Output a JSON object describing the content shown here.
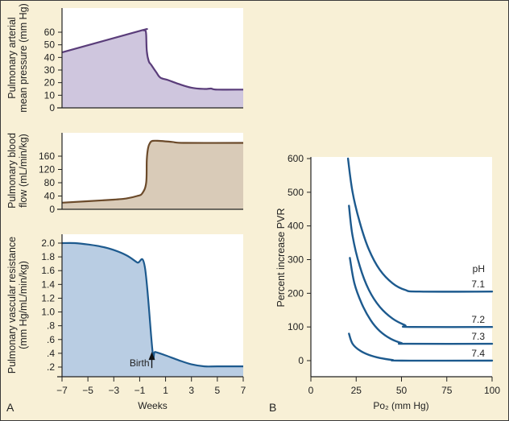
{
  "chart_data": [
    {
      "panel": "A",
      "type": "area",
      "title": "",
      "ylabel": [
        "Pulmonary arterial",
        "mean pressure (mm Hg)"
      ],
      "xlabel": "",
      "xlim": [
        -7,
        7
      ],
      "ylim": [
        0,
        70
      ],
      "yticks": [
        0,
        10,
        20,
        30,
        40,
        50,
        60
      ],
      "ytick_labels": [
        "0",
        "10",
        "20",
        "30",
        "40",
        "50",
        "60"
      ],
      "color": "#5a3d7a",
      "fill": "#cfc6de",
      "x": [
        -7,
        -1.0,
        -0.7,
        -0.55,
        -0.5,
        -0.45,
        -0.3,
        -0.1,
        0.3,
        0.6,
        1.2,
        2.0,
        3.0,
        4.0,
        4.5,
        5.0,
        7
      ],
      "y": [
        44,
        61,
        61.5,
        61,
        58,
        45,
        37,
        34,
        28,
        24,
        22,
        19,
        16,
        15,
        15.3,
        14.5,
        14.5
      ]
    },
    {
      "panel": "A",
      "type": "area",
      "ylabel": [
        "Pulmonary blood",
        "flow (mL/min/kg)"
      ],
      "xlabel": "",
      "xlim": [
        -7,
        7
      ],
      "ylim": [
        0,
        210
      ],
      "yticks": [
        0,
        40,
        80,
        120,
        160
      ],
      "ytick_labels": [
        "0",
        "40",
        "80",
        "120",
        "160"
      ],
      "color": "#6b4a2a",
      "fill": "#d9cbb8",
      "x": [
        -7,
        -3,
        -2,
        -1.2,
        -0.8,
        -0.5,
        -0.45,
        -0.35,
        -0.2,
        0,
        0.5,
        1.5,
        2.5,
        7
      ],
      "y": [
        20,
        29,
        33,
        40,
        48,
        80,
        150,
        185,
        200,
        206,
        206,
        203,
        200,
        200
      ]
    },
    {
      "panel": "A",
      "type": "area",
      "ylabel": [
        "Pulmonary vascular resistance",
        "(mm Hg/mL/min/kg)"
      ],
      "xlabel": "Weeks",
      "xlim": [
        -7,
        7
      ],
      "ylim": [
        0.1,
        2.1
      ],
      "xticks": [
        -7,
        -5,
        -3,
        -1,
        1,
        3,
        5,
        7
      ],
      "xtick_labels": [
        "−7",
        "−5",
        "−3",
        "−1",
        "1",
        "3",
        "5",
        "7"
      ],
      "yticks": [
        0.2,
        0.4,
        0.6,
        0.8,
        1.0,
        1.2,
        1.4,
        1.6,
        1.8,
        2.0
      ],
      "ytick_labels": [
        ".2",
        ".4",
        ".6",
        ".8",
        "1.0",
        "1.2",
        "1.4",
        "1.6",
        "1.8",
        "2.0"
      ],
      "color": "#1d5a8e",
      "fill": "#b9cde3",
      "x": [
        -7,
        -6,
        -5,
        -4,
        -3,
        -2,
        -1.2,
        -0.6,
        0,
        0.2,
        1,
        2,
        3,
        4,
        5,
        7
      ],
      "y": [
        2.0,
        2.0,
        1.98,
        1.95,
        1.9,
        1.82,
        1.72,
        1.65,
        0.42,
        0.42,
        0.37,
        0.3,
        0.24,
        0.21,
        0.21,
        0.21
      ],
      "annotation": {
        "text": "Birth",
        "x": 0,
        "y": 0.42
      },
      "panel_label": "A"
    },
    {
      "panel": "B",
      "type": "line",
      "title": "",
      "xlabel": "Po₂ (mm Hg)",
      "ylabel": "Percent increase PVR",
      "xlim": [
        0,
        100
      ],
      "ylim": [
        -50,
        600
      ],
      "xticks": [
        0,
        25,
        50,
        75,
        100
      ],
      "xtick_labels": [
        "0",
        "25",
        "50",
        "75",
        "100"
      ],
      "yticks": [
        0,
        100,
        200,
        300,
        400,
        500,
        600
      ],
      "ytick_labels": [
        "0",
        "100",
        "200",
        "300",
        "400",
        "500",
        "600"
      ],
      "legend_title": "pH",
      "color": "#1d5a8e",
      "series": [
        {
          "name": "7.1",
          "x": [
            20.5,
            23,
            27,
            32,
            38,
            45,
            52,
            60,
            100
          ],
          "y": [
            600,
            500,
            410,
            330,
            270,
            230,
            210,
            205,
            205
          ]
        },
        {
          "name": "7.2",
          "x": [
            21,
            23,
            27,
            32,
            38,
            45,
            52,
            55,
            100
          ],
          "y": [
            460,
            370,
            280,
            210,
            160,
            125,
            105,
            100,
            100
          ]
        },
        {
          "name": "7.3",
          "x": [
            21.5,
            24,
            28,
            33,
            38,
            44,
            50,
            53,
            100
          ],
          "y": [
            305,
            230,
            170,
            120,
            88,
            65,
            52,
            50,
            50
          ]
        },
        {
          "name": "7.4",
          "x": [
            21,
            23,
            27,
            32,
            38,
            45,
            50,
            100
          ],
          "y": [
            80,
            50,
            30,
            17,
            8,
            2,
            0,
            0
          ]
        }
      ],
      "panel_label": "B"
    }
  ]
}
